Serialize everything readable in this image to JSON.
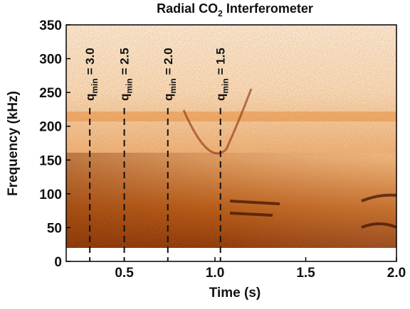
{
  "chart_data": {
    "type": "spectrogram",
    "title": {
      "text": "Radial CO",
      "subscript": "2",
      "rest": " Interferometer"
    },
    "xlabel": "Time (s)",
    "ylabel": "Frequency (kHz)",
    "xlim": [
      0.18,
      2.0
    ],
    "ylim": [
      0,
      350
    ],
    "xticks": [
      0.5,
      {
        "value": 1.0,
        "label": "1.0"
      },
      1.5,
      {
        "value": 2.0,
        "label": "2.0"
      }
    ],
    "yticks": [
      0,
      50,
      100,
      150,
      200,
      250,
      300,
      350
    ],
    "annotations": [
      {
        "x": 0.31,
        "symbol": "q",
        "subscript": "min",
        "text": " = 3.0"
      },
      {
        "x": 0.5,
        "symbol": "q",
        "subscript": "min",
        "text": " = 2.5"
      },
      {
        "x": 0.74,
        "symbol": "q",
        "subscript": "min",
        "text": " = 2.0"
      },
      {
        "x": 1.03,
        "symbol": "q",
        "subscript": "min",
        "text": " = 1.5"
      }
    ]
  }
}
